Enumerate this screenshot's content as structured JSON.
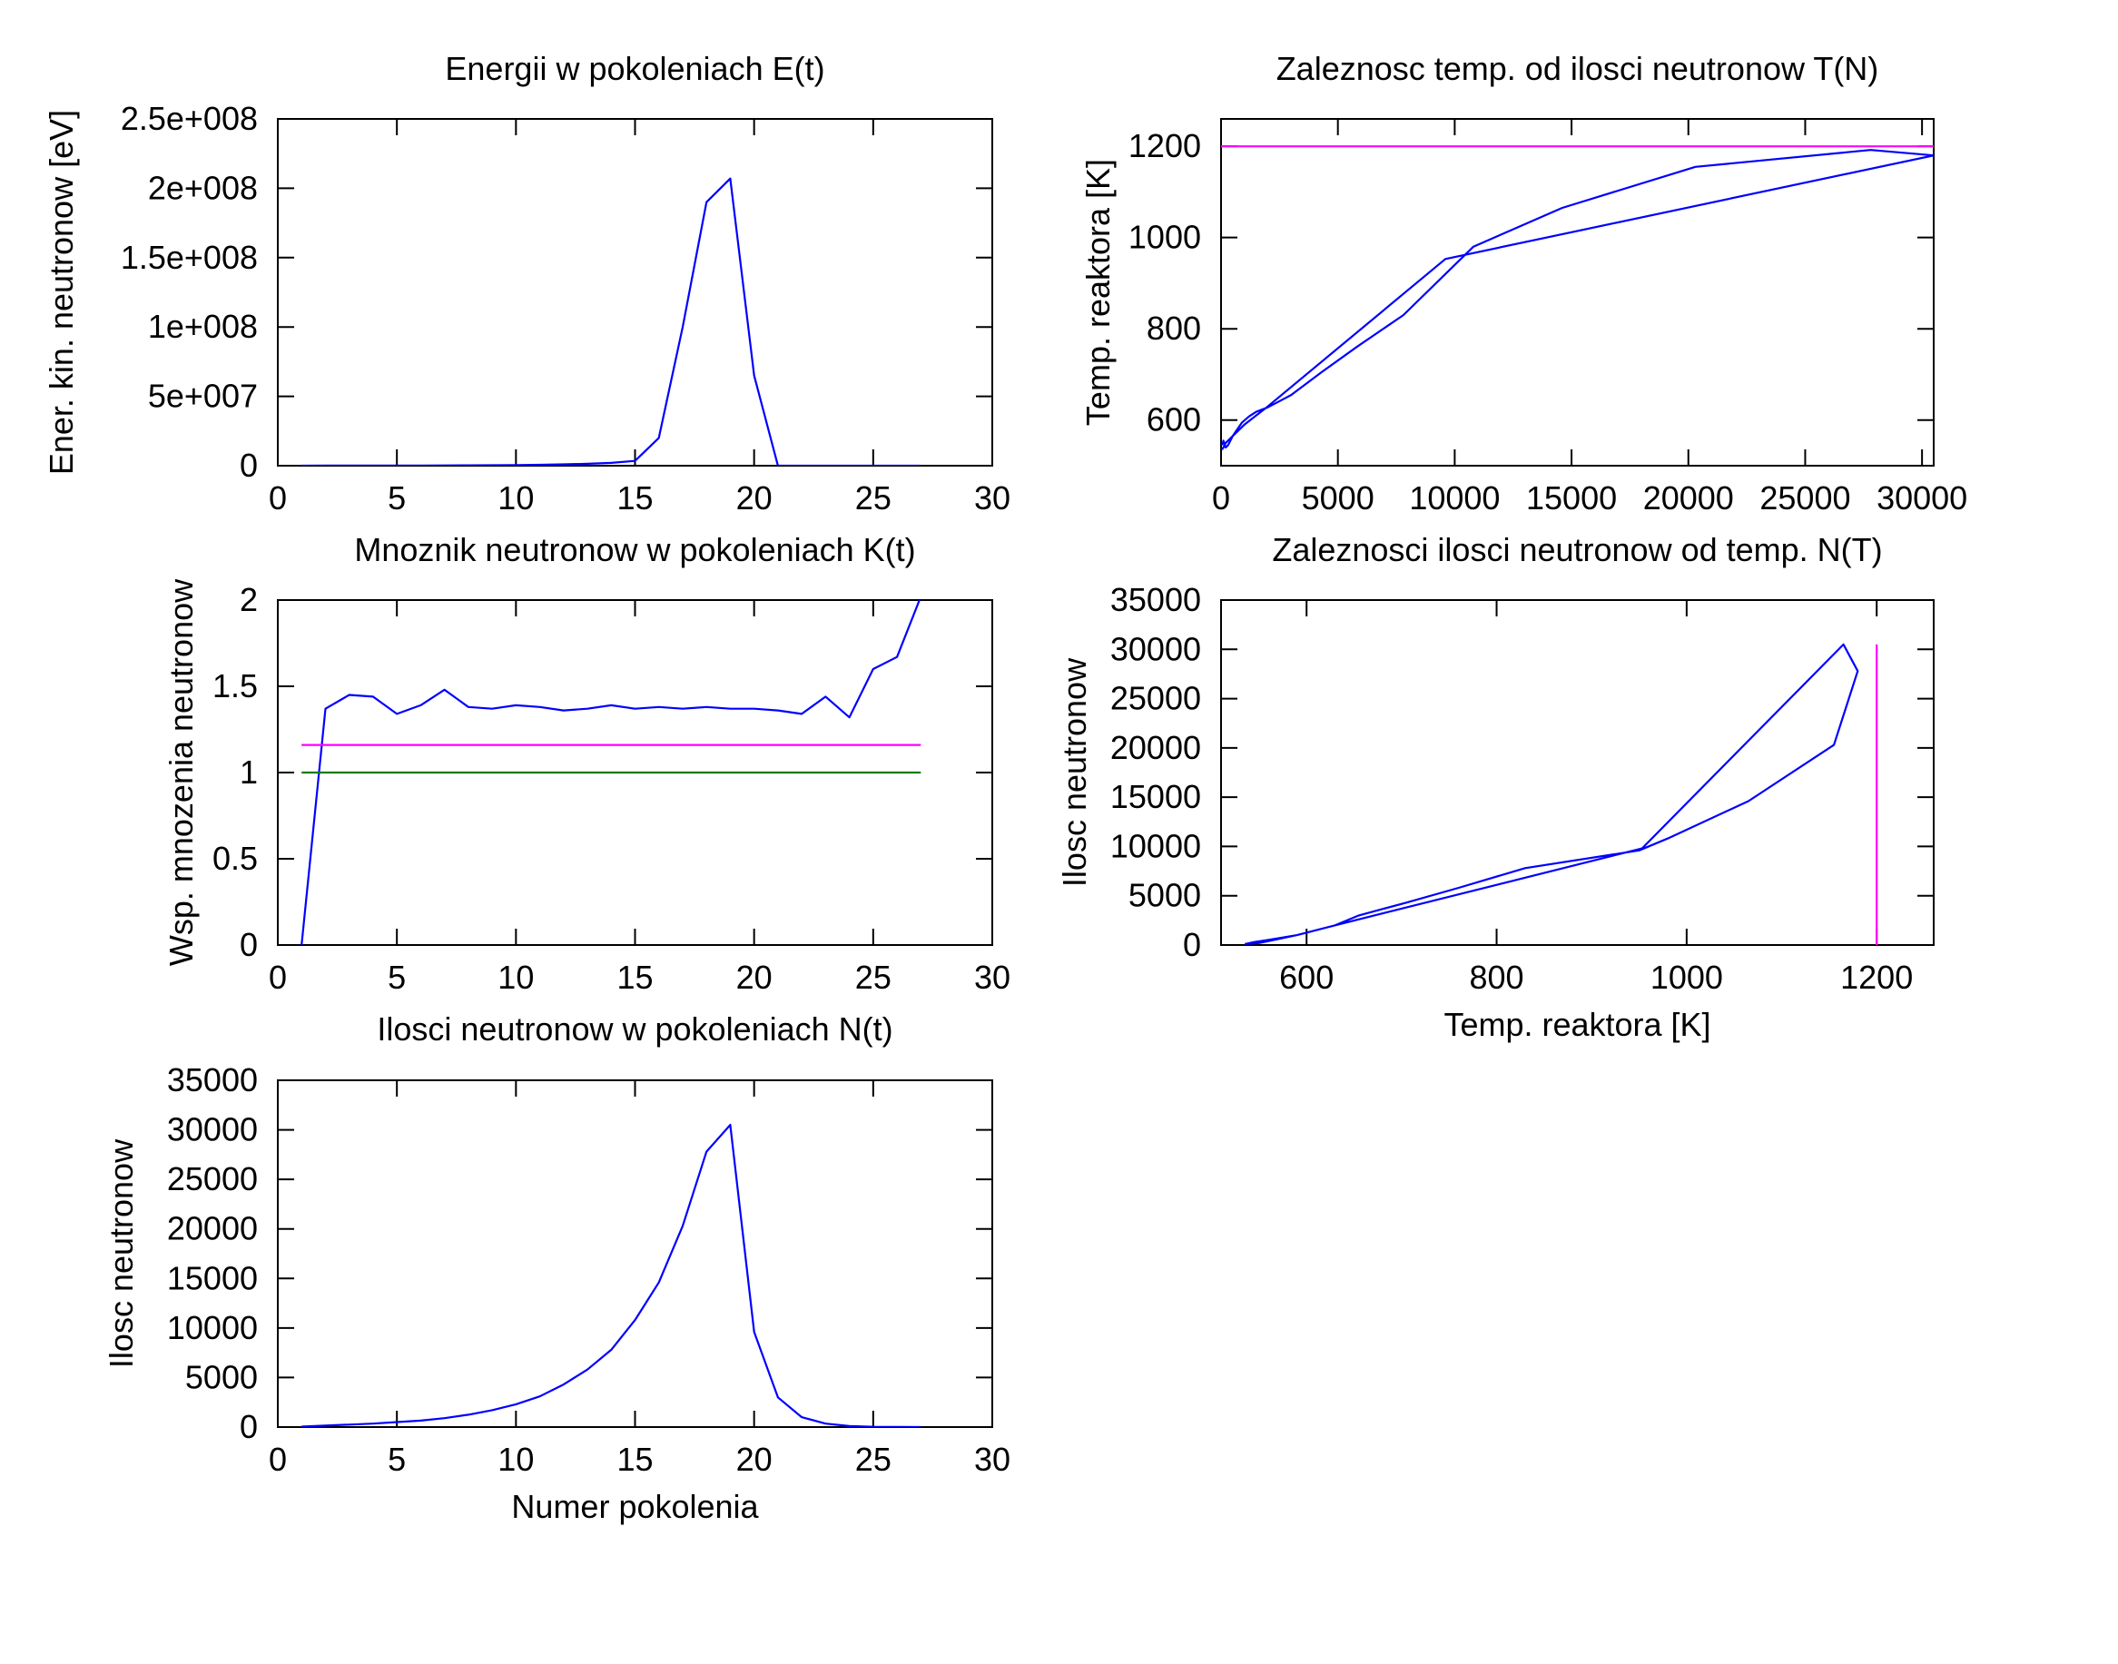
{
  "chart_data": [
    {
      "type": "line",
      "title": "Energii w pokoleniach E(t)",
      "xlabel": "",
      "ylabel": "Ener. kin. neutronow [eV]",
      "xlim": [
        0,
        30
      ],
      "ylim": [
        0,
        250000000
      ],
      "xticks": [
        0,
        5,
        10,
        15,
        20,
        25,
        30
      ],
      "xtick_labels": [
        "0",
        "5",
        "10",
        "15",
        "20",
        "25",
        "30"
      ],
      "yticks": [
        0,
        50000000,
        100000000,
        150000000,
        200000000,
        250000000
      ],
      "ytick_labels": [
        "0",
        "5e+007",
        "1e+008",
        "1.5e+008",
        "2e+008",
        "2.5e+008"
      ],
      "grid": false,
      "series": [
        {
          "color": "#0000ff",
          "x": [
            1,
            2,
            3,
            4,
            5,
            6,
            7,
            8,
            9,
            10,
            11,
            12,
            13,
            14,
            15,
            16,
            17,
            18,
            19,
            20,
            21,
            22,
            23,
            24,
            25,
            26,
            27
          ],
          "y": [
            20000,
            40000,
            60000,
            80000,
            100000,
            130000,
            170000,
            230000,
            320000,
            450000,
            650000,
            950000,
            1400000,
            2000000,
            3500000,
            20000000,
            100000000,
            190000000,
            207000000,
            65000000,
            0,
            0,
            0,
            0,
            0,
            0,
            0
          ]
        }
      ]
    },
    {
      "type": "line",
      "title": "Zaleznosc temp. od ilosci neutronow T(N)",
      "xlabel": "",
      "ylabel": "Temp. reaktora [K]",
      "xlim": [
        0,
        30500
      ],
      "ylim": [
        500,
        1260
      ],
      "xticks": [
        0,
        5000,
        10000,
        15000,
        20000,
        25000,
        30000
      ],
      "xtick_labels": [
        "0",
        "5000",
        "10000",
        "15000",
        "20000",
        "25000",
        "30000"
      ],
      "yticks": [
        600,
        800,
        1000,
        1200
      ],
      "ytick_labels": [
        "600",
        "800",
        "1000",
        "1200"
      ],
      "grid": false,
      "series": [
        {
          "color": "#0000ff",
          "x": [
            50,
            100,
            200,
            300,
            400,
            500,
            700,
            900,
            1200,
            1500,
            2000,
            3000,
            4300,
            5800,
            7800,
            10800,
            14600,
            20300,
            27800,
            30500,
            9600,
            2000,
            1000,
            500,
            200,
            100,
            40
          ],
          "y": [
            545,
            555,
            540,
            545,
            555,
            565,
            580,
            595,
            608,
            618,
            628,
            655,
            705,
            760,
            830,
            980,
            1065,
            1155,
            1192,
            1180,
            953,
            630,
            590,
            565,
            550,
            540,
            535
          ]
        },
        {
          "color": "#ff00ff",
          "x": [
            0,
            30500
          ],
          "y": [
            1200,
            1200
          ]
        }
      ]
    },
    {
      "type": "line",
      "title": "Mnoznik neutronow w pokoleniach K(t)",
      "xlabel": "",
      "ylabel": "Wsp. mnozenia neutronow",
      "xlim": [
        0,
        30
      ],
      "ylim": [
        0,
        2
      ],
      "xticks": [
        0,
        5,
        10,
        15,
        20,
        25,
        30
      ],
      "xtick_labels": [
        "0",
        "5",
        "10",
        "15",
        "20",
        "25",
        "30"
      ],
      "yticks": [
        0,
        0.5,
        1,
        1.5,
        2
      ],
      "ytick_labels": [
        "0",
        "0.5",
        "1",
        "1.5",
        "2"
      ],
      "grid": false,
      "series": [
        {
          "color": "#0000ff",
          "x": [
            1,
            2,
            3,
            4,
            5,
            6,
            7,
            8,
            9,
            10,
            11,
            12,
            13,
            14,
            15,
            16,
            17,
            18,
            19,
            20,
            21,
            22,
            23,
            24,
            25,
            26,
            27
          ],
          "y": [
            0,
            1.37,
            1.45,
            1.44,
            1.34,
            1.39,
            1.48,
            1.38,
            1.37,
            1.39,
            1.38,
            1.36,
            1.37,
            1.39,
            1.37,
            1.38,
            1.37,
            1.38,
            1.37,
            1.37,
            1.36,
            1.34,
            1.44,
            1.32,
            1.6,
            1.67,
            2.02
          ]
        },
        {
          "color": "#ff00ff",
          "x": [
            1,
            27
          ],
          "y": [
            1.16,
            1.16
          ]
        },
        {
          "color": "#008000",
          "x": [
            1,
            27
          ],
          "y": [
            1.0,
            1.0
          ]
        }
      ]
    },
    {
      "type": "line",
      "title": "Zaleznosci ilosci neutronow od temp. N(T)",
      "xlabel": "Temp. reaktora [K]",
      "ylabel": "Ilosc neutronow",
      "xlim": [
        510,
        1260
      ],
      "ylim": [
        0,
        35000
      ],
      "xticks": [
        600,
        800,
        1000,
        1200
      ],
      "xtick_labels": [
        "600",
        "800",
        "1000",
        "1200"
      ],
      "yticks": [
        0,
        5000,
        10000,
        15000,
        20000,
        25000,
        30000,
        35000
      ],
      "ytick_labels": [
        "0",
        "5000",
        "10000",
        "15000",
        "20000",
        "25000",
        "30000",
        "35000"
      ],
      "grid": false,
      "series": [
        {
          "color": "#0000ff",
          "x": [
            535,
            550,
            565,
            590,
            630,
            655,
            705,
            760,
            830,
            950,
            980,
            1065,
            1155,
            1180,
            1165,
            953,
            630,
            590,
            565,
            545,
            535
          ],
          "y": [
            100,
            200,
            500,
            1000,
            2000,
            3000,
            4300,
            5800,
            7800,
            9600,
            10800,
            14600,
            20300,
            27800,
            30500,
            9800,
            2000,
            1000,
            600,
            300,
            100
          ]
        },
        {
          "color": "#ff00ff",
          "x": [
            1200,
            1200
          ],
          "y": [
            0,
            30500
          ]
        }
      ]
    },
    {
      "type": "line",
      "title": "Ilosci neutronow w pokoleniach N(t)",
      "xlabel": "Numer pokolenia",
      "ylabel": "Ilosc neutronow",
      "xlim": [
        0,
        30
      ],
      "ylim": [
        0,
        35000
      ],
      "xticks": [
        0,
        5,
        10,
        15,
        20,
        25,
        30
      ],
      "xtick_labels": [
        "0",
        "5",
        "10",
        "15",
        "20",
        "25",
        "30"
      ],
      "yticks": [
        0,
        5000,
        10000,
        15000,
        20000,
        25000,
        30000,
        35000
      ],
      "ytick_labels": [
        "0",
        "5000",
        "10000",
        "15000",
        "20000",
        "25000",
        "30000",
        "35000"
      ],
      "grid": false,
      "series": [
        {
          "color": "#0000ff",
          "x": [
            1,
            2,
            3,
            4,
            5,
            6,
            7,
            8,
            9,
            10,
            11,
            12,
            13,
            14,
            15,
            16,
            17,
            18,
            19,
            20,
            21,
            22,
            23,
            24,
            25,
            26,
            27
          ],
          "y": [
            50,
            150,
            250,
            350,
            500,
            650,
            900,
            1250,
            1700,
            2300,
            3100,
            4300,
            5800,
            7800,
            10800,
            14600,
            20300,
            27800,
            30500,
            9600,
            3000,
            1000,
            350,
            100,
            30,
            10,
            0
          ]
        }
      ]
    }
  ]
}
